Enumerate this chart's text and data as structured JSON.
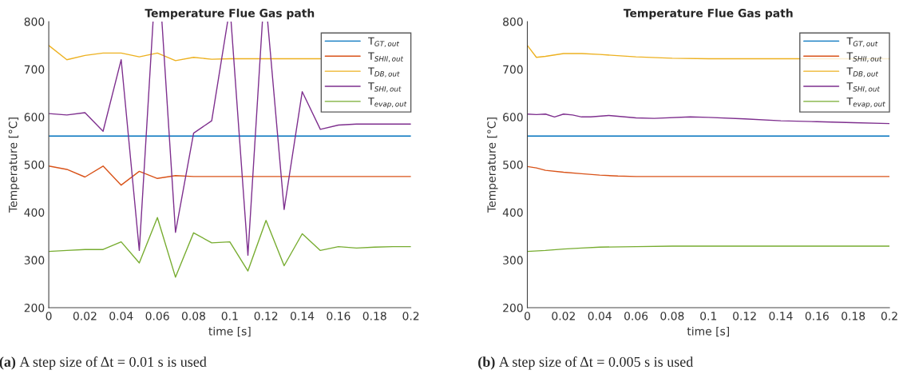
{
  "chart_data": [
    {
      "type": "line",
      "title": "Temperature Flue Gas path",
      "xlabel": "time [s]",
      "ylabel": "Temperature [°C]",
      "annotations": [
        "(a) A step size of Δt = 0.01 s is used"
      ],
      "x": [
        0,
        0.01,
        0.02,
        0.03,
        0.04,
        0.05,
        0.06,
        0.07,
        0.08,
        0.09,
        0.1,
        0.11,
        0.12,
        0.13,
        0.14,
        0.15,
        0.16,
        0.17,
        0.18,
        0.19,
        0.2
      ],
      "series": [
        {
          "name": "T$_{GT,out}$",
          "color": "#0072bd",
          "values": [
            560,
            560,
            560,
            560,
            560,
            560,
            560,
            560,
            560,
            560,
            560,
            560,
            560,
            560,
            560,
            560,
            560,
            560,
            560,
            560,
            560
          ]
        },
        {
          "name": "T$_{SHII,out}$",
          "color": "#d95319",
          "values": [
            497,
            490,
            474,
            497,
            457,
            486,
            471,
            477,
            475,
            475,
            475,
            475,
            475,
            475,
            475,
            475,
            475,
            475,
            475,
            475,
            475
          ]
        },
        {
          "name": "T$_{DB,out}$",
          "color": "#edb120",
          "values": [
            750,
            720,
            729,
            734,
            734,
            726,
            734,
            718,
            725,
            721,
            722,
            722,
            722,
            722,
            722,
            722,
            null,
            null,
            null,
            null,
            null
          ]
        },
        {
          "name": "T$_{SHI,out}$",
          "color": "#7e2f8e",
          "x": [
            0,
            0.01,
            0.02,
            0.03,
            0.04,
            0.05,
            0.0576,
            0.06,
            0.0625,
            0.07,
            0.08,
            0.09,
            0.0988,
            0.1,
            0.1007,
            0.11,
            0.118,
            0.12,
            0.1209,
            0.13,
            0.14,
            0.15,
            0.16,
            0.17,
            0.18,
            0.19,
            0.2
          ],
          "values": [
            607,
            604,
            609,
            570,
            720,
            320,
            800,
            null,
            800,
            358,
            566,
            592,
            800,
            null,
            800,
            310,
            800,
            null,
            800,
            406,
            653,
            574,
            583,
            585,
            585,
            585,
            585
          ]
        },
        {
          "name": "T$_{evap,out}$",
          "color": "#77ac30",
          "values": [
            318,
            320,
            322,
            322,
            338,
            294,
            389,
            264,
            357,
            336,
            338,
            277,
            383,
            288,
            355,
            320,
            328,
            325,
            327,
            328,
            328
          ]
        }
      ],
      "xlim": [
        0,
        0.2
      ],
      "ylim": [
        200,
        800
      ],
      "xticks": [
        0,
        0.02,
        0.04,
        0.06,
        0.08,
        0.1,
        0.12,
        0.14,
        0.16,
        0.18,
        0.2
      ],
      "yticks": [
        200,
        300,
        400,
        500,
        600,
        700,
        800
      ],
      "grid": false,
      "legend": "top right"
    },
    {
      "type": "line",
      "title": "Temperature Flue Gas path",
      "xlabel": "time [s]",
      "ylabel": "Temperature [°C]",
      "annotations": [
        "(b) A step size of Δt = 0.005 s is used"
      ],
      "x": [
        0,
        0.2
      ],
      "series": [
        {
          "name": "T$_{GT,out}$",
          "color": "#0072bd",
          "values": [
            560,
            560
          ]
        },
        {
          "name": "T$_{SHII,out}$",
          "color": "#d95319",
          "x": [
            0,
            0.005,
            0.01,
            0.02,
            0.03,
            0.04,
            0.05,
            0.06,
            0.2
          ],
          "values": [
            496,
            493,
            488,
            484,
            481,
            478,
            476,
            475,
            475
          ]
        },
        {
          "name": "T$_{DB,out}$",
          "color": "#edb120",
          "x": [
            0,
            0.005,
            0.01,
            0.02,
            0.03,
            0.04,
            0.06,
            0.08,
            0.1,
            0.2
          ],
          "values": [
            750,
            725,
            727,
            733,
            733,
            731,
            726,
            723,
            722,
            722
          ]
        },
        {
          "name": "T$_{SHI,out}$",
          "color": "#7e2f8e",
          "x": [
            0,
            0.005,
            0.01,
            0.015,
            0.02,
            0.025,
            0.03,
            0.035,
            0.045,
            0.06,
            0.07,
            0.09,
            0.1,
            0.12,
            0.14,
            0.16,
            0.18,
            0.2
          ],
          "values": [
            606,
            605,
            606,
            600,
            606,
            604,
            600,
            600,
            603,
            598,
            597,
            600,
            599,
            596,
            592,
            590,
            588,
            586
          ]
        },
        {
          "name": "T$_{evap,out}$",
          "color": "#77ac30",
          "x": [
            0,
            0.01,
            0.02,
            0.03,
            0.04,
            0.06,
            0.08,
            0.2
          ],
          "values": [
            318,
            320,
            323,
            325,
            327,
            328,
            329,
            329
          ]
        }
      ],
      "xlim": [
        0,
        0.2
      ],
      "ylim": [
        200,
        800
      ],
      "xticks": [
        0,
        0.02,
        0.04,
        0.06,
        0.08,
        0.1,
        0.12,
        0.14,
        0.16,
        0.18,
        0.2
      ],
      "yticks": [
        200,
        300,
        400,
        500,
        600,
        700,
        800
      ],
      "grid": false,
      "legend": "top right"
    }
  ]
}
